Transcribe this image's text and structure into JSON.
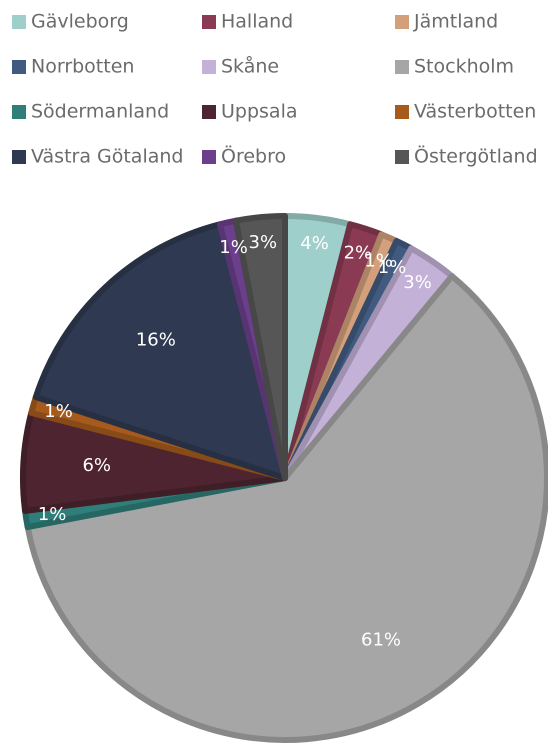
{
  "chart_data": {
    "type": "pie",
    "categories": [
      "Gävleborg",
      "Halland",
      "Jämtland",
      "Norrbotten",
      "Skåne",
      "Stockholm",
      "Södermanland",
      "Uppsala",
      "Västerbotten",
      "Västra Götaland",
      "Örebro",
      "Östergötland"
    ],
    "values": [
      4,
      2,
      1,
      1,
      3,
      61,
      1,
      6,
      1,
      16,
      1,
      3
    ],
    "value_labels": [
      "4%",
      "2%",
      "1%",
      "1%",
      "3%",
      "61%",
      "1%",
      "6%",
      "1%",
      "16%",
      "1%",
      "3%"
    ],
    "colors": [
      "#9fcfcb",
      "#8a3a52",
      "#d3a07b",
      "#415b80",
      "#c3b1d8",
      "#a6a6a6",
      "#2f7e79",
      "#4e2430",
      "#a65b1d",
      "#2f3a52",
      "#6b3f8b",
      "#565656"
    ],
    "legend": "top"
  }
}
